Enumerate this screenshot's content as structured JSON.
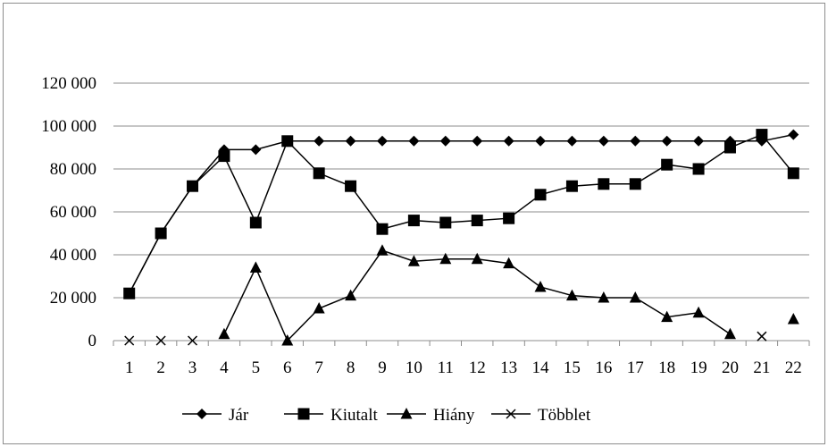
{
  "chart_data": {
    "type": "line",
    "title": "",
    "xlabel": "",
    "ylabel": "",
    "ylim": [
      0,
      120000
    ],
    "y_ticks": [
      0,
      20000,
      40000,
      60000,
      80000,
      100000,
      120000
    ],
    "y_tick_labels": [
      "0",
      "20 000",
      "40 000",
      "60 000",
      "80 000",
      "100 000",
      "120 000"
    ],
    "categories": [
      "1",
      "2",
      "3",
      "4",
      "5",
      "6",
      "7",
      "8",
      "9",
      "10",
      "11",
      "12",
      "13",
      "14",
      "15",
      "16",
      "17",
      "18",
      "19",
      "20",
      "21",
      "22"
    ],
    "grid": "horizontal",
    "legend_position": "bottom",
    "line_color": "#000000",
    "series": [
      {
        "name": "Jár",
        "marker": "diamond",
        "values": [
          22000,
          50000,
          72000,
          89000,
          89000,
          93000,
          93000,
          93000,
          93000,
          93000,
          93000,
          93000,
          93000,
          93000,
          93000,
          93000,
          93000,
          93000,
          93000,
          93000,
          93000,
          96000
        ]
      },
      {
        "name": "Kiutalt",
        "marker": "square",
        "values": [
          22000,
          50000,
          72000,
          86000,
          55000,
          93000,
          78000,
          72000,
          52000,
          56000,
          55000,
          56000,
          57000,
          68000,
          72000,
          73000,
          73000,
          82000,
          80000,
          90000,
          96000,
          78000
        ]
      },
      {
        "name": "Hiány",
        "marker": "triangle",
        "values": [
          null,
          null,
          null,
          3000,
          34000,
          0,
          15000,
          21000,
          42000,
          37000,
          38000,
          38000,
          36000,
          25000,
          21000,
          20000,
          20000,
          11000,
          13000,
          3000,
          null,
          10000
        ]
      },
      {
        "name": "Többlet",
        "marker": "x",
        "values": [
          0,
          0,
          0,
          null,
          null,
          null,
          null,
          null,
          null,
          null,
          null,
          null,
          null,
          null,
          null,
          null,
          null,
          null,
          null,
          null,
          2000,
          null
        ]
      }
    ]
  }
}
